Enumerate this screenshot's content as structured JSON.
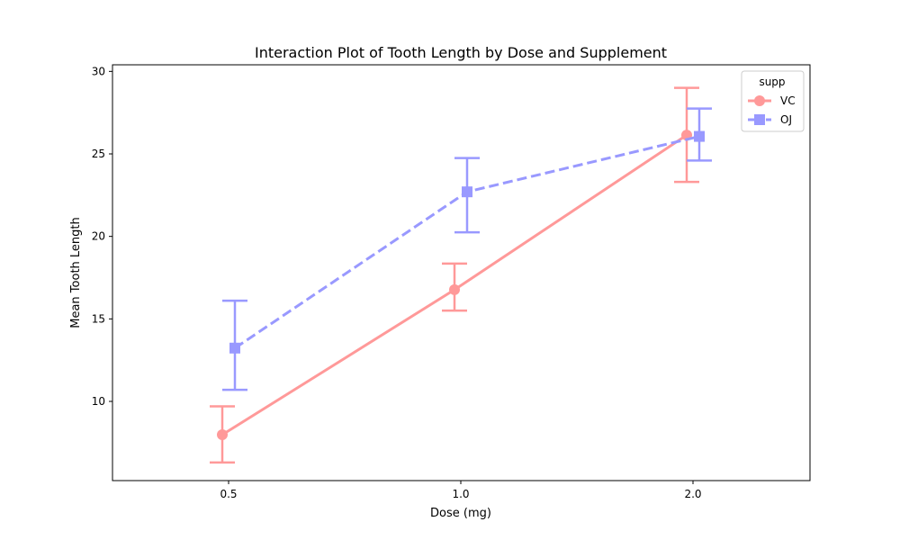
{
  "chart_data": {
    "type": "line",
    "title": "Interaction Plot of Tooth Length by Dose and Supplement",
    "xlabel": "Dose (mg)",
    "ylabel": "Mean Tooth Length",
    "categories": [
      "0.5",
      "1.0",
      "2.0"
    ],
    "yticks": [
      10,
      15,
      20,
      25,
      30
    ],
    "ylim": [
      5.2,
      30.4
    ],
    "grid": false,
    "legend": {
      "title": "supp",
      "placement": "top-right"
    },
    "series": [
      {
        "name": "VC",
        "color": "#ff9999",
        "marker": "circle",
        "linestyle": "solid",
        "values": [
          7.98,
          16.77,
          26.14
        ],
        "ci_low": [
          6.3,
          15.5,
          23.3
        ],
        "ci_high": [
          9.7,
          18.35,
          29.0
        ]
      },
      {
        "name": "OJ",
        "color": "#9999ff",
        "marker": "square",
        "linestyle": "dashed",
        "values": [
          13.23,
          22.7,
          26.06
        ],
        "ci_low": [
          10.7,
          20.25,
          24.6
        ],
        "ci_high": [
          16.1,
          24.75,
          27.75
        ]
      }
    ]
  }
}
